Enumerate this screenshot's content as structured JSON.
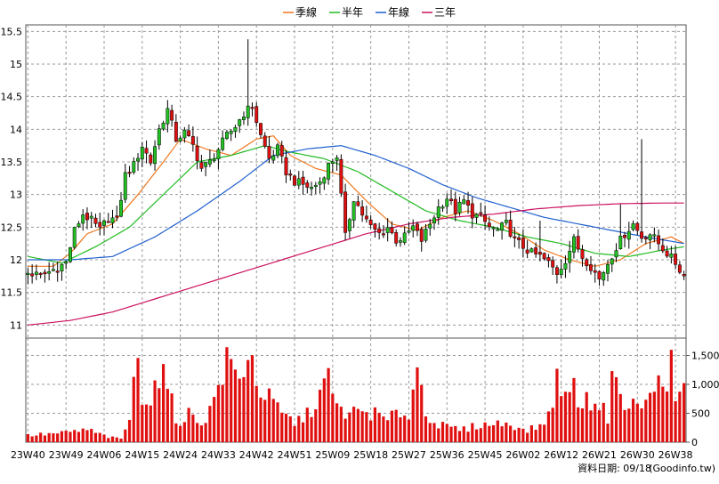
{
  "chart_data": [
    {
      "type": "candlestick",
      "legend_position": "top-center",
      "legend": [
        {
          "name": "季線",
          "color": "#f07820"
        },
        {
          "name": "半年",
          "color": "#22bb22"
        },
        {
          "name": "年線",
          "color": "#2060d0"
        },
        {
          "name": "三年",
          "color": "#cc1060"
        }
      ],
      "ylim": [
        10.8,
        15.6
      ],
      "yticks": [
        11,
        11.5,
        12,
        12.5,
        13,
        13.5,
        14,
        14.5,
        15,
        15.5
      ],
      "ytick_labels": [
        "11",
        "11.5",
        "12",
        "12.5",
        "13",
        "13.5",
        "14",
        "14.5",
        "15",
        "15.5"
      ],
      "grid": true,
      "x_tick_labels": [
        "23W40",
        "23W49",
        "24W06",
        "24W15",
        "24W24",
        "24W33",
        "24W42",
        "24W51",
        "25W09",
        "25W18",
        "25W27",
        "25W36",
        "25W45",
        "26W02",
        "26W12",
        "26W21",
        "26W30",
        "26W38"
      ],
      "week_count": 156,
      "tick_every": 9,
      "up_color": "#22c022",
      "down_color": "#e01010",
      "close_anchors": [
        [
          0,
          11.8
        ],
        [
          3,
          11.75
        ],
        [
          6,
          11.85
        ],
        [
          9,
          11.95
        ],
        [
          11,
          12.45
        ],
        [
          13,
          12.7
        ],
        [
          15,
          12.6
        ],
        [
          17,
          12.45
        ],
        [
          19,
          12.65
        ],
        [
          21,
          12.6
        ],
        [
          23,
          13.3
        ],
        [
          25,
          13.45
        ],
        [
          27,
          13.75
        ],
        [
          29,
          13.5
        ],
        [
          31,
          14.0
        ],
        [
          33,
          14.3
        ],
        [
          35,
          13.85
        ],
        [
          37,
          13.95
        ],
        [
          39,
          13.75
        ],
        [
          41,
          13.4
        ],
        [
          43,
          13.5
        ],
        [
          45,
          13.7
        ],
        [
          47,
          13.9
        ],
        [
          49,
          14.05
        ],
        [
          51,
          14.25
        ],
        [
          53,
          14.35
        ],
        [
          55,
          13.9
        ],
        [
          57,
          13.55
        ],
        [
          59,
          13.7
        ],
        [
          61,
          13.35
        ],
        [
          63,
          13.2
        ],
        [
          65,
          13.15
        ],
        [
          67,
          13.1
        ],
        [
          69,
          13.2
        ],
        [
          71,
          13.45
        ],
        [
          73,
          13.6
        ],
        [
          75,
          12.35
        ],
        [
          77,
          12.95
        ],
        [
          79,
          12.7
        ],
        [
          81,
          12.5
        ],
        [
          83,
          12.4
        ],
        [
          85,
          12.5
        ],
        [
          87,
          12.3
        ],
        [
          89,
          12.35
        ],
        [
          91,
          12.5
        ],
        [
          93,
          12.3
        ],
        [
          95,
          12.55
        ],
        [
          97,
          12.8
        ],
        [
          99,
          12.95
        ],
        [
          101,
          12.75
        ],
        [
          103,
          12.9
        ],
        [
          105,
          12.7
        ],
        [
          107,
          12.65
        ],
        [
          109,
          12.5
        ],
        [
          111,
          12.45
        ],
        [
          113,
          12.55
        ],
        [
          115,
          12.3
        ],
        [
          117,
          12.2
        ],
        [
          119,
          12.1
        ],
        [
          121,
          12.05
        ],
        [
          123,
          11.95
        ],
        [
          125,
          11.8
        ],
        [
          127,
          12.0
        ],
        [
          129,
          12.3
        ],
        [
          131,
          12.05
        ],
        [
          133,
          11.9
        ],
        [
          135,
          11.7
        ],
        [
          137,
          11.95
        ],
        [
          139,
          12.2
        ],
        [
          141,
          12.4
        ],
        [
          143,
          12.55
        ],
        [
          145,
          12.35
        ],
        [
          147,
          12.4
        ],
        [
          149,
          12.25
        ],
        [
          151,
          12.1
        ],
        [
          153,
          11.95
        ],
        [
          155,
          11.75
        ]
      ],
      "spikes": [
        [
          52,
          15.38
        ],
        [
          145,
          13.85
        ],
        [
          140,
          12.85
        ],
        [
          121,
          12.6
        ]
      ],
      "ma_quarter": [
        [
          0,
          11.9
        ],
        [
          6,
          11.9
        ],
        [
          10,
          12.1
        ],
        [
          14,
          12.4
        ],
        [
          20,
          12.55
        ],
        [
          26,
          13.0
        ],
        [
          32,
          13.5
        ],
        [
          36,
          13.85
        ],
        [
          42,
          13.7
        ],
        [
          48,
          13.6
        ],
        [
          54,
          13.85
        ],
        [
          58,
          13.9
        ],
        [
          62,
          13.6
        ],
        [
          68,
          13.4
        ],
        [
          74,
          13.3
        ],
        [
          80,
          12.9
        ],
        [
          86,
          12.55
        ],
        [
          92,
          12.45
        ],
        [
          98,
          12.65
        ],
        [
          104,
          12.75
        ],
        [
          110,
          12.6
        ],
        [
          116,
          12.4
        ],
        [
          122,
          12.15
        ],
        [
          128,
          12.0
        ],
        [
          134,
          11.9
        ],
        [
          140,
          12.0
        ],
        [
          146,
          12.25
        ],
        [
          152,
          12.35
        ],
        [
          155,
          12.25
        ]
      ],
      "ma_halfyear": [
        [
          0,
          12.05
        ],
        [
          8,
          11.95
        ],
        [
          16,
          12.2
        ],
        [
          24,
          12.5
        ],
        [
          32,
          13.0
        ],
        [
          40,
          13.5
        ],
        [
          48,
          13.6
        ],
        [
          56,
          13.75
        ],
        [
          62,
          13.65
        ],
        [
          70,
          13.55
        ],
        [
          78,
          13.35
        ],
        [
          86,
          13.05
        ],
        [
          94,
          12.75
        ],
        [
          102,
          12.6
        ],
        [
          110,
          12.5
        ],
        [
          118,
          12.35
        ],
        [
          126,
          12.25
        ],
        [
          134,
          12.1
        ],
        [
          142,
          12.05
        ],
        [
          150,
          12.15
        ],
        [
          155,
          12.2
        ]
      ],
      "ma_year": [
        [
          0,
          12.0
        ],
        [
          10,
          12.0
        ],
        [
          20,
          12.05
        ],
        [
          30,
          12.35
        ],
        [
          40,
          12.75
        ],
        [
          50,
          13.2
        ],
        [
          58,
          13.6
        ],
        [
          66,
          13.7
        ],
        [
          74,
          13.75
        ],
        [
          82,
          13.6
        ],
        [
          90,
          13.4
        ],
        [
          98,
          13.15
        ],
        [
          106,
          12.95
        ],
        [
          114,
          12.8
        ],
        [
          122,
          12.65
        ],
        [
          130,
          12.55
        ],
        [
          138,
          12.45
        ],
        [
          146,
          12.35
        ],
        [
          155,
          12.25
        ]
      ],
      "ma_3year": [
        [
          0,
          11.0
        ],
        [
          10,
          11.07
        ],
        [
          20,
          11.2
        ],
        [
          30,
          11.4
        ],
        [
          40,
          11.6
        ],
        [
          50,
          11.8
        ],
        [
          60,
          12.0
        ],
        [
          70,
          12.2
        ],
        [
          80,
          12.4
        ],
        [
          90,
          12.55
        ],
        [
          100,
          12.65
        ],
        [
          110,
          12.7
        ],
        [
          120,
          12.78
        ],
        [
          130,
          12.83
        ],
        [
          140,
          12.86
        ],
        [
          150,
          12.87
        ],
        [
          155,
          12.87
        ]
      ]
    },
    {
      "type": "bar",
      "ylim": [
        0,
        1800
      ],
      "yticks": [
        0,
        500,
        1000,
        1500
      ],
      "ytick_labels": [
        "0",
        "500",
        "1,000",
        "1,500"
      ],
      "bar_color": "#e01010",
      "volume_anchors": [
        [
          0,
          120
        ],
        [
          8,
          160
        ],
        [
          14,
          220
        ],
        [
          19,
          90
        ],
        [
          22,
          60
        ],
        [
          24,
          420
        ],
        [
          26,
          1500
        ],
        [
          27,
          900
        ],
        [
          29,
          750
        ],
        [
          31,
          1250
        ],
        [
          33,
          1000
        ],
        [
          35,
          350
        ],
        [
          38,
          500
        ],
        [
          41,
          350
        ],
        [
          43,
          550
        ],
        [
          46,
          1250
        ],
        [
          48,
          1450
        ],
        [
          50,
          1000
        ],
        [
          52,
          1750
        ],
        [
          54,
          1050
        ],
        [
          57,
          750
        ],
        [
          60,
          500
        ],
        [
          63,
          350
        ],
        [
          66,
          480
        ],
        [
          69,
          850
        ],
        [
          71,
          1100
        ],
        [
          73,
          600
        ],
        [
          76,
          500
        ],
        [
          79,
          550
        ],
        [
          82,
          500
        ],
        [
          85,
          380
        ],
        [
          88,
          550
        ],
        [
          90,
          480
        ],
        [
          92,
          1350
        ],
        [
          94,
          550
        ],
        [
          97,
          300
        ],
        [
          100,
          250
        ],
        [
          103,
          220
        ],
        [
          106,
          300
        ],
        [
          110,
          320
        ],
        [
          114,
          350
        ],
        [
          117,
          200
        ],
        [
          120,
          250
        ],
        [
          123,
          450
        ],
        [
          125,
          1200
        ],
        [
          126,
          700
        ],
        [
          128,
          1100
        ],
        [
          131,
          650
        ],
        [
          134,
          800
        ],
        [
          137,
          450
        ],
        [
          139,
          1550
        ],
        [
          141,
          550
        ],
        [
          144,
          700
        ],
        [
          146,
          650
        ],
        [
          148,
          1000
        ],
        [
          150,
          1000
        ],
        [
          152,
          1450
        ],
        [
          153,
          600
        ],
        [
          155,
          1000
        ]
      ]
    }
  ],
  "footer": {
    "date_label": "資料日期: 09/18",
    "source_label": "(Goodinfo.tw)"
  }
}
